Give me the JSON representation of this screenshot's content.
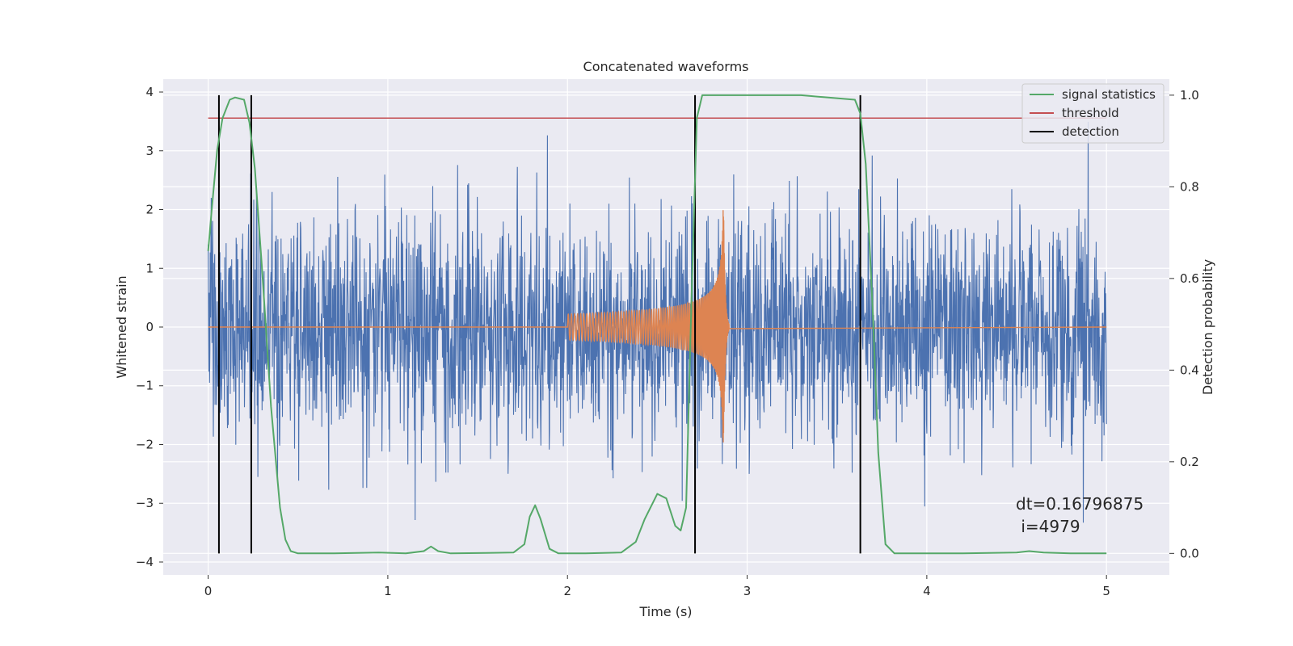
{
  "chart_data": {
    "type": "line",
    "title": "Concatenated waveforms",
    "xlabel": "Time (s)",
    "ylabel": "Whitened strain",
    "y2label": "Detection probability",
    "xlim": [
      -0.25,
      5.35
    ],
    "ylim": [
      -4.22,
      4.22
    ],
    "y2lim": [
      -0.047,
      1.035
    ],
    "xticks": [
      "0",
      "1",
      "2",
      "3",
      "4",
      "5"
    ],
    "xtick_values": [
      0,
      1,
      2,
      3,
      4,
      5
    ],
    "yticks": [
      "4",
      "3",
      "2",
      "1",
      "0",
      "−1",
      "−2",
      "−3",
      "−4"
    ],
    "ytick_values": [
      4,
      3,
      2,
      1,
      0,
      -1,
      -2,
      -3,
      -4
    ],
    "y2ticks": [
      "1.0",
      "0.8",
      "0.6",
      "0.4",
      "0.2",
      "0.0"
    ],
    "y2tick_values": [
      1.0,
      0.8,
      0.6,
      0.4,
      0.2,
      0.0
    ],
    "grid": true,
    "legend_position": "top-right",
    "legend": [
      {
        "name": "signal statistics",
        "color": "#55a868",
        "type": "line"
      },
      {
        "name": "threshold",
        "color": "#c44e52",
        "type": "line"
      },
      {
        "name": "detection",
        "color": "#000000",
        "type": "line"
      }
    ],
    "noise": {
      "x_start": 0,
      "x_end": 5,
      "color": "#4c72b0",
      "approx_amplitude_range": [
        -3.5,
        3.9
      ]
    },
    "chirp": {
      "x_start": 2.0,
      "x_end": 2.9,
      "merger_x": 2.87,
      "peak_amplitude": 2.0,
      "color": "#dd8452"
    },
    "threshold": {
      "x_start": 0,
      "x_end": 5,
      "value": 0.95
    },
    "detections": [
      0.06,
      0.24,
      2.71,
      3.63
    ],
    "signal_statistics": {
      "x": [
        0,
        0.02,
        0.05,
        0.08,
        0.12,
        0.15,
        0.2,
        0.23,
        0.26,
        0.3,
        0.35,
        0.4,
        0.43,
        0.46,
        0.5,
        0.7,
        0.95,
        1.1,
        1.2,
        1.24,
        1.28,
        1.35,
        1.55,
        1.7,
        1.76,
        1.79,
        1.82,
        1.85,
        1.9,
        1.95,
        2.1,
        2.3,
        2.38,
        2.43,
        2.5,
        2.55,
        2.6,
        2.63,
        2.66,
        2.69,
        2.72,
        2.75,
        3.0,
        3.3,
        3.6,
        3.63,
        3.66,
        3.7,
        3.73,
        3.77,
        3.82,
        4.2,
        4.5,
        4.57,
        4.65,
        4.8,
        5.0
      ],
      "y": [
        0.66,
        0.75,
        0.88,
        0.95,
        0.99,
        0.995,
        0.99,
        0.94,
        0.84,
        0.62,
        0.32,
        0.1,
        0.03,
        0.005,
        0.0,
        0.0,
        0.002,
        0.0,
        0.005,
        0.015,
        0.005,
        0.0,
        0.001,
        0.002,
        0.02,
        0.08,
        0.105,
        0.075,
        0.01,
        0.0,
        0.0,
        0.002,
        0.025,
        0.075,
        0.13,
        0.12,
        0.06,
        0.05,
        0.1,
        0.55,
        0.95,
        1.0,
        1.0,
        1.0,
        0.99,
        0.96,
        0.85,
        0.52,
        0.22,
        0.02,
        0.0,
        0.0,
        0.002,
        0.005,
        0.002,
        0.0,
        0.0
      ]
    },
    "annotation": {
      "line1": "dt=0.16796875",
      "line2": " i=4979"
    }
  }
}
